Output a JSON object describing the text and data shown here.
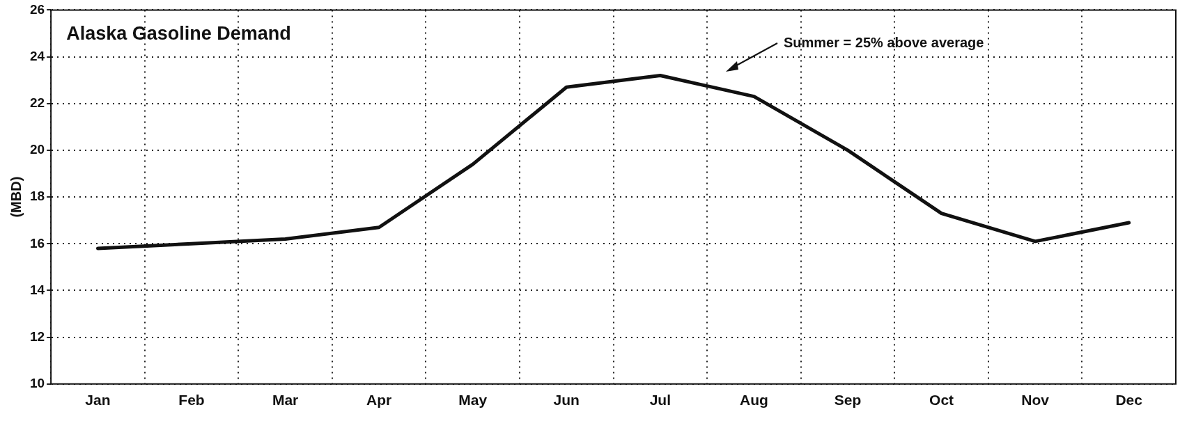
{
  "chart_data": {
    "type": "line",
    "title": "Alaska Gasoline Demand",
    "ylabel": "(MBD)",
    "categories": [
      "Jan",
      "Feb",
      "Mar",
      "Apr",
      "May",
      "Jun",
      "Jul",
      "Aug",
      "Sep",
      "Oct",
      "Nov",
      "Dec"
    ],
    "series": [
      {
        "color": "#111111",
        "values": [
          15.8,
          16.0,
          16.2,
          16.7,
          19.4,
          22.7,
          23.2,
          22.3,
          20.0,
          17.3,
          16.1,
          16.9
        ]
      }
    ],
    "ylim": [
      10,
      26
    ],
    "yticks": [
      10,
      12,
      14,
      16,
      18,
      20,
      22,
      24,
      26
    ],
    "grid": true,
    "legend": false,
    "marker": "none",
    "line_style": "solid",
    "annotations": [
      "Summer = 25% above average"
    ]
  }
}
